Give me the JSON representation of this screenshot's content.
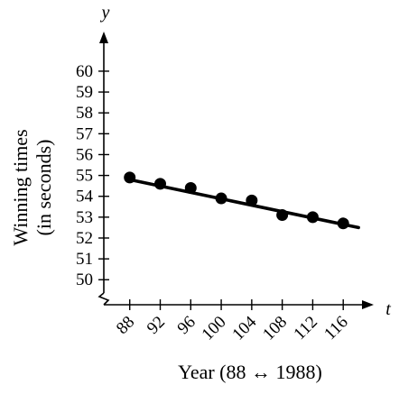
{
  "chart_data": {
    "type": "scatter",
    "x_axis": {
      "variable": "t",
      "label": "Year (88 ↔ 1988)",
      "ticks": [
        88,
        92,
        96,
        100,
        104,
        108,
        112,
        116
      ],
      "tick_labels": [
        "88",
        "92",
        "96",
        "100",
        "104",
        "108",
        "112",
        "116"
      ],
      "range": [
        84.6,
        120
      ]
    },
    "y_axis": {
      "variable": "y",
      "label_lines": [
        "Winning times",
        "(in seconds)"
      ],
      "ticks": [
        50,
        51,
        52,
        53,
        54,
        55,
        56,
        57,
        58,
        59,
        60
      ],
      "tick_labels": [
        "50",
        "51",
        "52",
        "53",
        "54",
        "55",
        "56",
        "57",
        "58",
        "59",
        "60"
      ],
      "range": [
        48.8,
        61.9
      ],
      "axis_break": true
    },
    "points": [
      {
        "x": 88,
        "y": 54.9
      },
      {
        "x": 92,
        "y": 54.6
      },
      {
        "x": 96,
        "y": 54.4
      },
      {
        "x": 100,
        "y": 53.9
      },
      {
        "x": 104,
        "y": 53.8
      },
      {
        "x": 108,
        "y": 53.1
      },
      {
        "x": 112,
        "y": 53.0
      },
      {
        "x": 116,
        "y": 52.7
      }
    ],
    "trend_line": {
      "x_start": 88,
      "y_start": 54.8,
      "x_end": 118,
      "y_end": 52.5
    },
    "grid": false,
    "legend": null
  }
}
